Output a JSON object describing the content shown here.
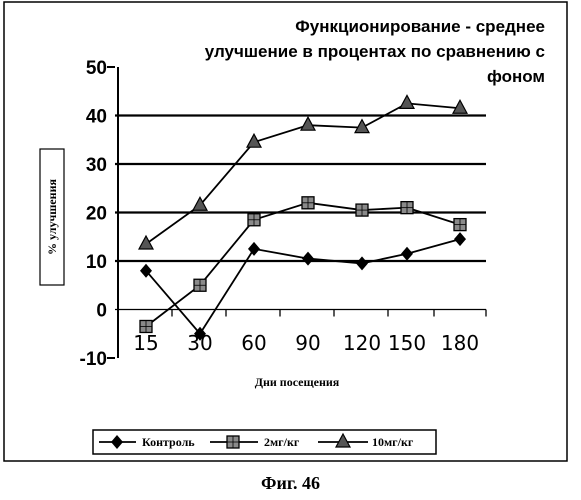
{
  "chart_data": {
    "type": "line",
    "title_lines": [
      "Функционирование - среднее",
      "улучшение в процентах по сравнению с",
      "фоном"
    ],
    "xlabel": "Дни посещения",
    "ylabel": "% улучшения",
    "categories": [
      "15",
      "30",
      "60",
      "90",
      "120",
      "150",
      "180"
    ],
    "y_ticks": [
      "50",
      "40",
      "30",
      "20",
      "10",
      "0",
      "-10"
    ],
    "ylim": [
      -10,
      50
    ],
    "grid": "horizontal",
    "legend_position": "bottom",
    "series": [
      {
        "name": "Контроль",
        "marker": "diamond",
        "values": [
          8,
          -5,
          12.5,
          10.5,
          9.5,
          11.5,
          14.5
        ]
      },
      {
        "name": "2мг/кг",
        "marker": "square",
        "values": [
          -3.5,
          5,
          18.5,
          22,
          20.5,
          21,
          17.5
        ]
      },
      {
        "name": "10мг/кг",
        "marker": "triangle",
        "values": [
          13.5,
          21.5,
          34.5,
          38,
          37.5,
          42.5,
          41.5
        ]
      }
    ]
  },
  "caption": "Фиг. 46"
}
